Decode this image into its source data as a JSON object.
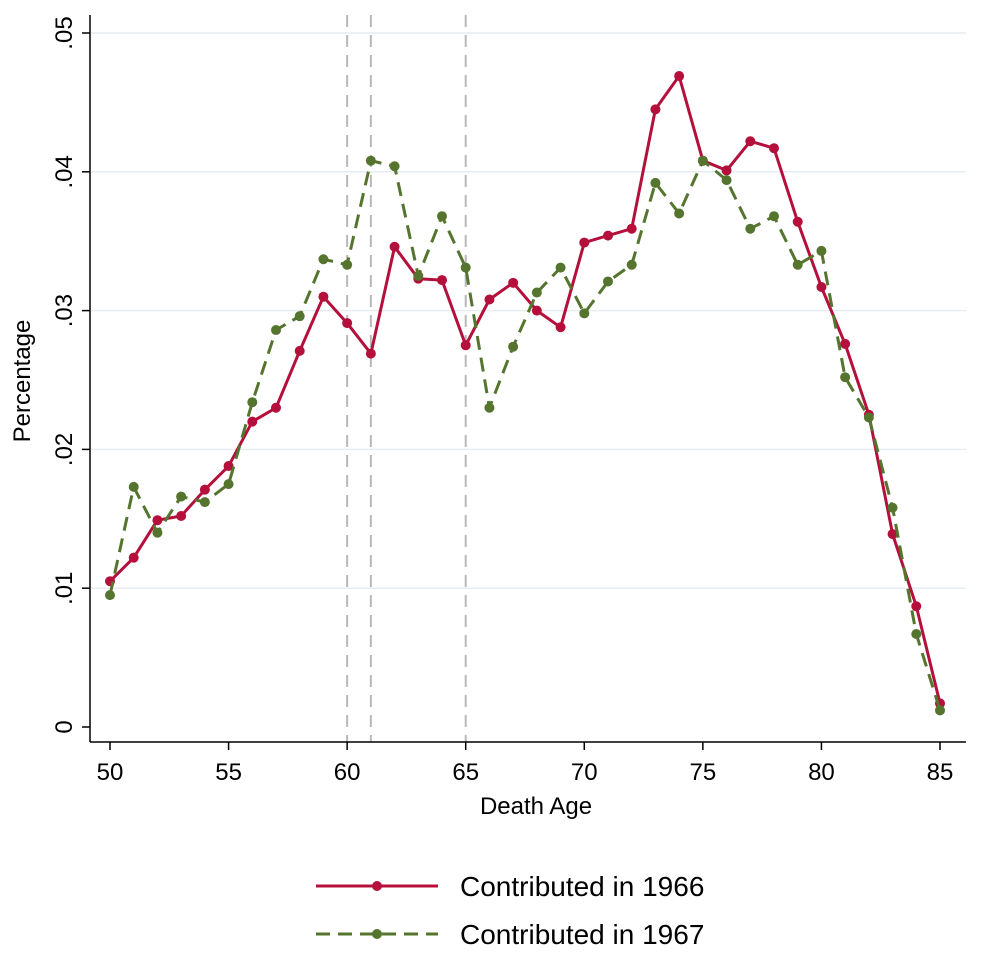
{
  "chart_data": {
    "type": "line",
    "xlabel": "Death Age",
    "ylabel": "Percentage",
    "xlim": [
      50,
      85
    ],
    "ylim": [
      0,
      0.05
    ],
    "x_ticks": [
      50,
      55,
      60,
      65,
      70,
      75,
      80,
      85
    ],
    "x_tick_labels": [
      "50",
      "55",
      "60",
      "65",
      "70",
      "75",
      "80",
      "85"
    ],
    "y_ticks": [
      0,
      0.01,
      0.02,
      0.03,
      0.04,
      0.05
    ],
    "y_tick_labels": [
      "0",
      ".01",
      ".02",
      ".03",
      ".04",
      ".05"
    ],
    "grid": true,
    "reference_lines_x": [
      60,
      61,
      65
    ],
    "legend_position": "bottom",
    "x": [
      50,
      51,
      52,
      53,
      54,
      55,
      56,
      57,
      58,
      59,
      60,
      61,
      62,
      63,
      64,
      65,
      66,
      67,
      68,
      69,
      70,
      71,
      72,
      73,
      74,
      75,
      76,
      77,
      78,
      79,
      80,
      81,
      82,
      83,
      84,
      85
    ],
    "series": [
      {
        "name": "Contributed in 1966",
        "color": "#b5103c",
        "line_style": "solid",
        "values": [
          0.0105,
          0.0122,
          0.0149,
          0.0152,
          0.0171,
          0.0188,
          0.022,
          0.023,
          0.0271,
          0.031,
          0.0291,
          0.0269,
          0.0346,
          0.0323,
          0.0322,
          0.0275,
          0.0308,
          0.032,
          0.03,
          0.0288,
          0.0349,
          0.0354,
          0.0359,
          0.0445,
          0.0469,
          0.0408,
          0.0401,
          0.0422,
          0.0417,
          0.0364,
          0.0317,
          0.0276,
          0.0225,
          0.0139,
          0.0087,
          0.0017
        ]
      },
      {
        "name": "Contributed in 1967",
        "color": "#55752f",
        "line_style": "dashed",
        "values": [
          0.0095,
          0.0173,
          0.014,
          0.0166,
          0.0162,
          0.0175,
          0.0234,
          0.0286,
          0.0296,
          0.0337,
          0.0333,
          0.0408,
          0.0404,
          0.0325,
          0.0368,
          0.0331,
          0.023,
          0.0274,
          0.0313,
          0.0331,
          0.0298,
          0.0321,
          0.0333,
          0.0392,
          0.037,
          0.0408,
          0.0394,
          0.0359,
          0.0368,
          0.0333,
          0.0343,
          0.0252,
          0.0223,
          0.0158,
          0.0067,
          0.0012
        ]
      }
    ]
  }
}
